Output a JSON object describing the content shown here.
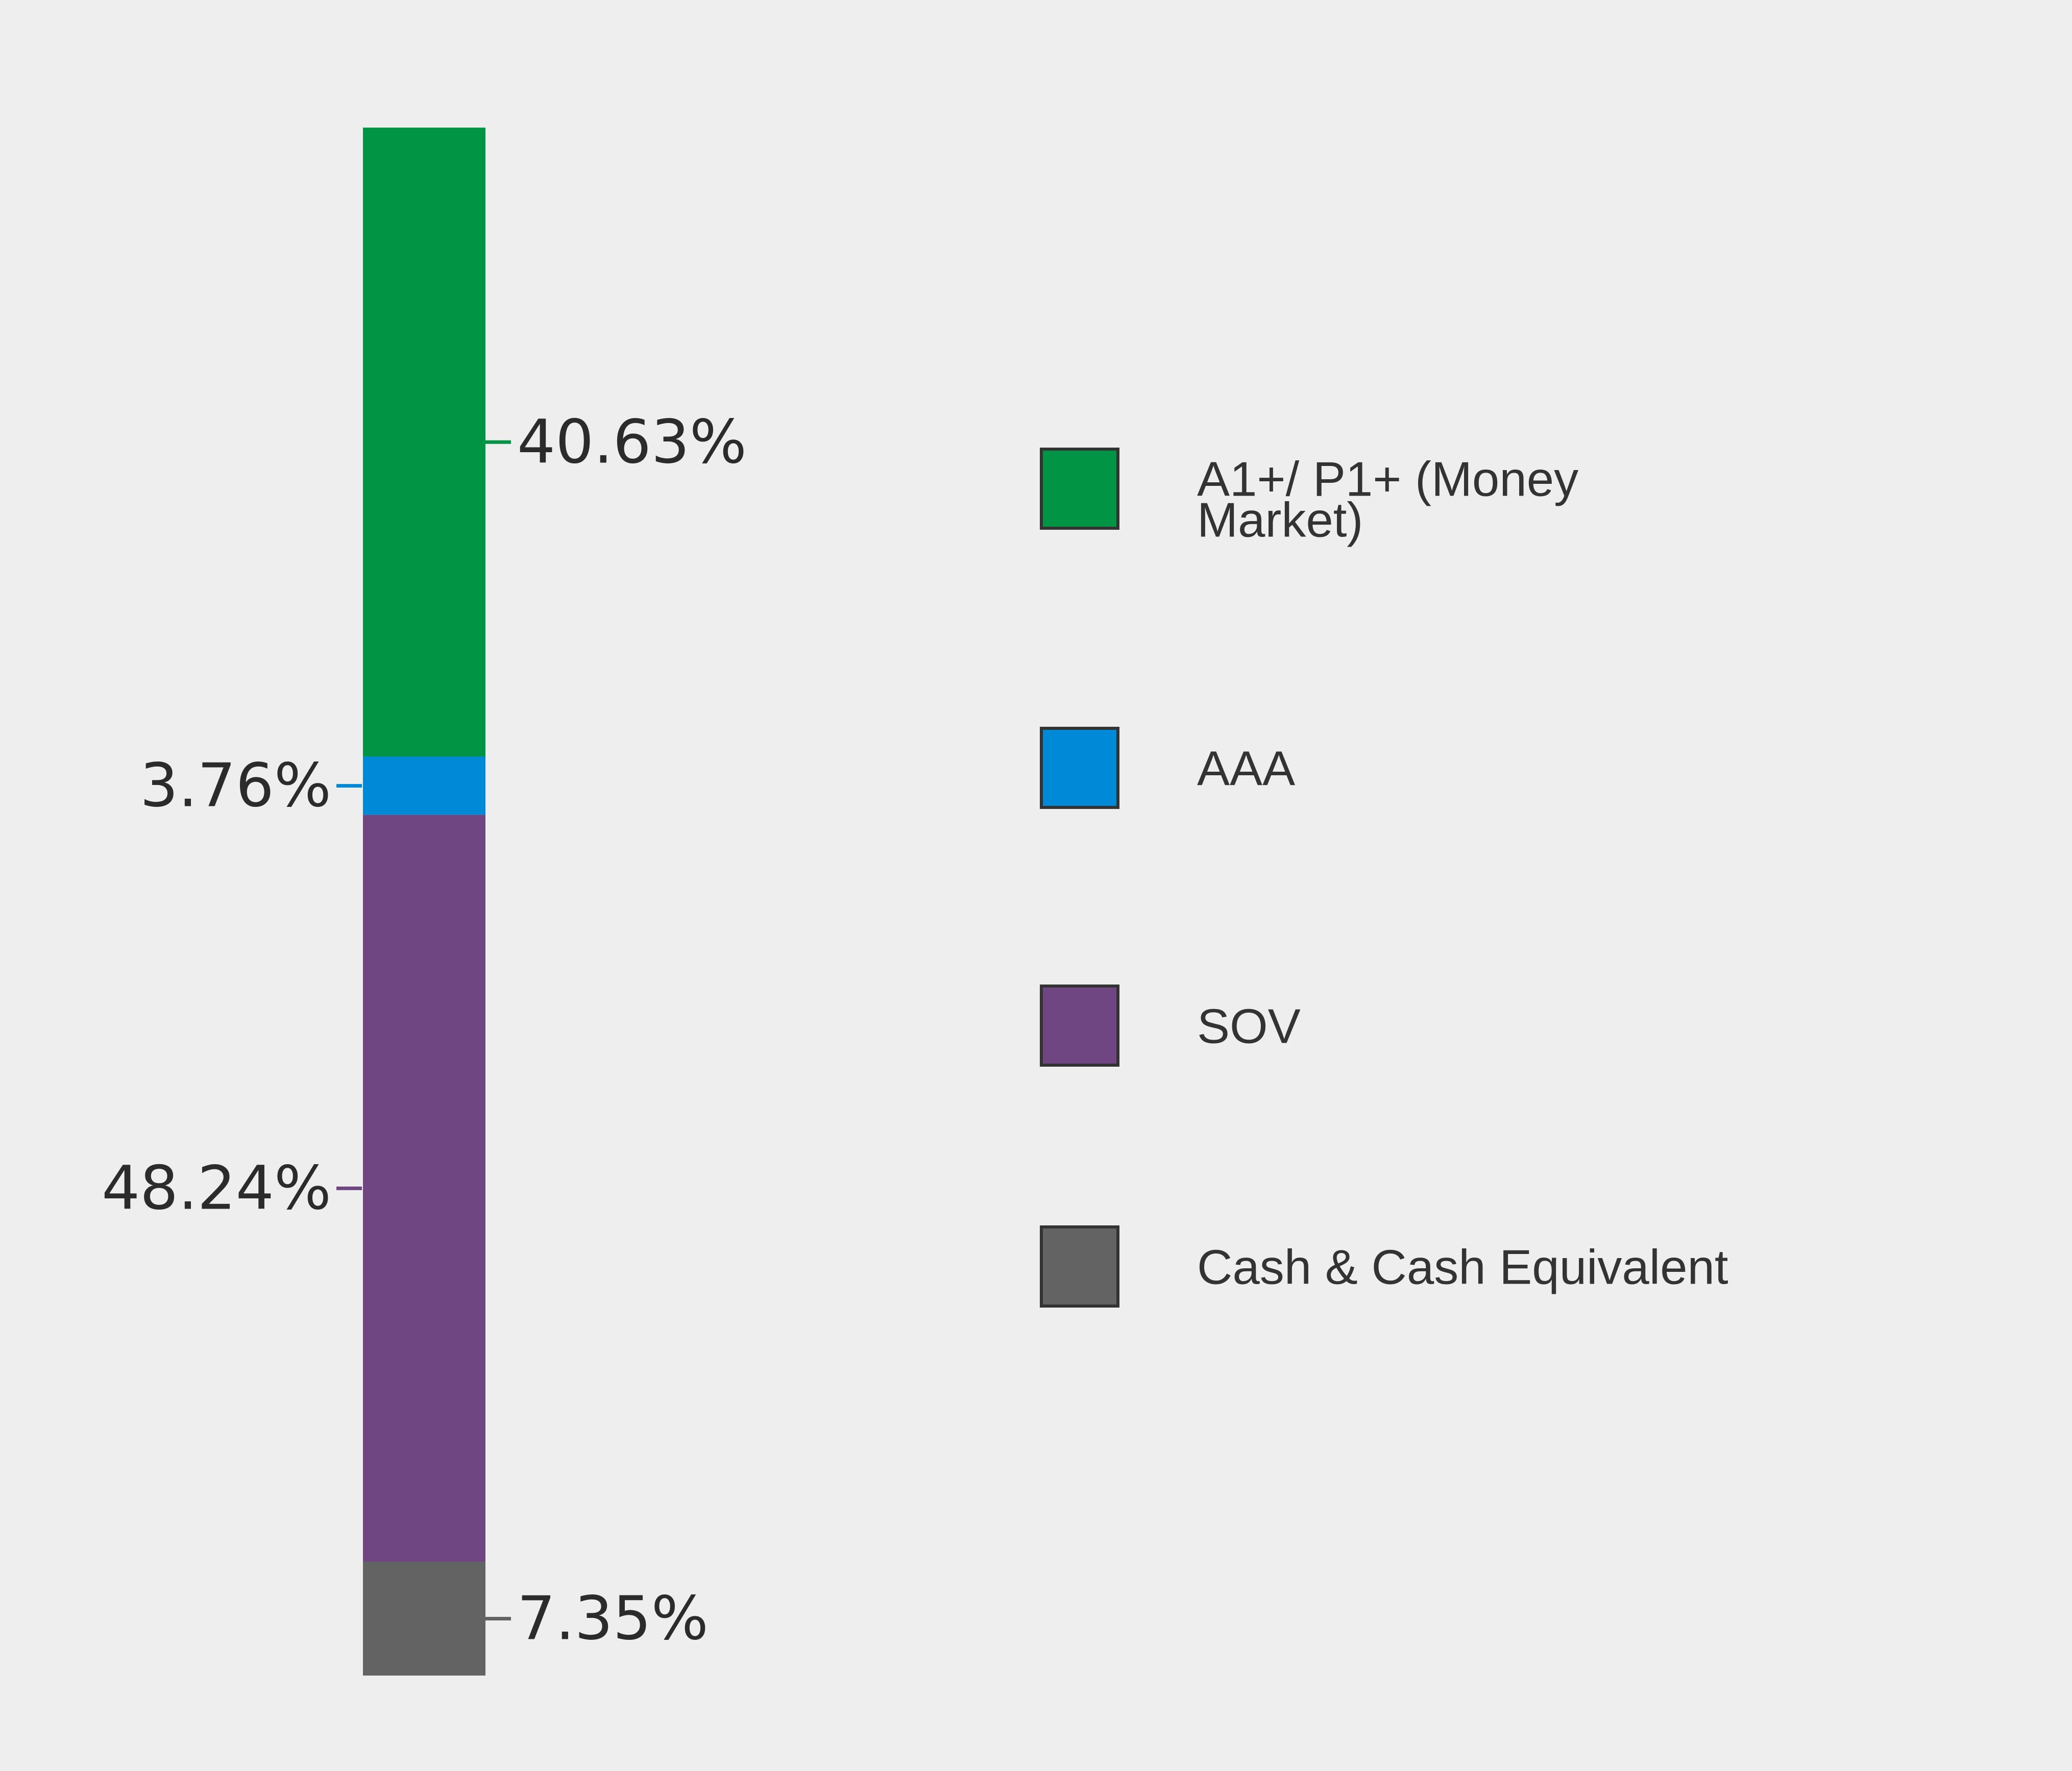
{
  "chart_data": {
    "type": "bar",
    "stacked": true,
    "orientation": "vertical",
    "series": [
      {
        "name": "A1+/ P1+ (Money Market)",
        "value": 40.63,
        "label": "40.63%",
        "color": "#009444"
      },
      {
        "name": "AAA",
        "value": 3.76,
        "label": "3.76%",
        "color": "#0089d6"
      },
      {
        "name": "SOV",
        "value": 48.24,
        "label": "48.24%",
        "color": "#6f4682"
      },
      {
        "name": "Cash & Cash Equivalent",
        "value": 7.35,
        "label": "7.35%",
        "color": "#636363"
      }
    ],
    "label_sides": [
      "right",
      "left",
      "left",
      "right"
    ],
    "legend_lines": [
      [
        "A1+/ P1+ (Money",
        "Market)"
      ],
      [
        "AAA"
      ],
      [
        "SOV"
      ],
      [
        "Cash & Cash Equivalent"
      ]
    ],
    "legend_position": "right",
    "grid": false,
    "axes": false
  },
  "colors": {
    "background": "#edeeed",
    "legend_border": "#333333",
    "label_text": "#2b2b2b"
  }
}
